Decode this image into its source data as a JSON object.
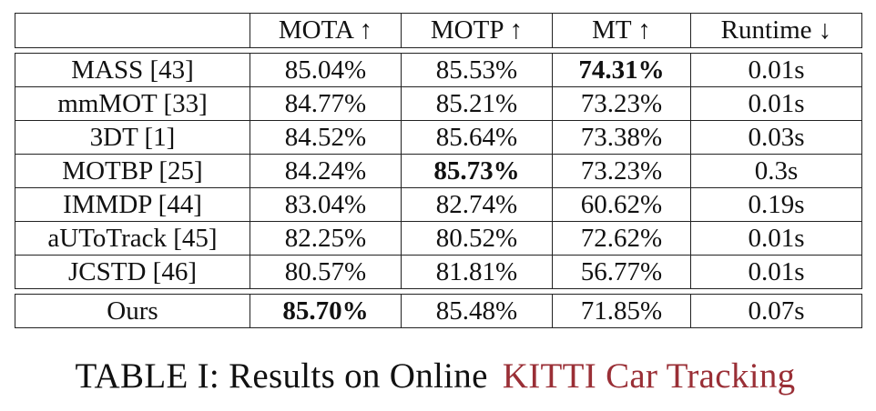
{
  "table": {
    "columns": [
      "",
      "MOTA ↑",
      "MOTP ↑",
      "MT ↑",
      "Runtime ↓"
    ],
    "rows": [
      {
        "method": "MASS [43]",
        "mota": "85.04%",
        "motp": "85.53%",
        "mt": "74.31%",
        "runtime": "0.01s",
        "bold": [
          "mt"
        ]
      },
      {
        "method": "mmMOT [33]",
        "mota": "84.77%",
        "motp": "85.21%",
        "mt": "73.23%",
        "runtime": "0.01s",
        "bold": []
      },
      {
        "method": "3DT [1]",
        "mota": "84.52%",
        "motp": "85.64%",
        "mt": "73.38%",
        "runtime": "0.03s",
        "bold": []
      },
      {
        "method": "MOTBP [25]",
        "mota": "84.24%",
        "motp": "85.73%",
        "mt": "73.23%",
        "runtime": "0.3s",
        "bold": [
          "motp"
        ]
      },
      {
        "method": "IMMDP [44]",
        "mota": "83.04%",
        "motp": "82.74%",
        "mt": "60.62%",
        "runtime": "0.19s",
        "bold": []
      },
      {
        "method": "aUToTrack [45]",
        "mota": "82.25%",
        "motp": "80.52%",
        "mt": "72.62%",
        "runtime": "0.01s",
        "bold": []
      },
      {
        "method": "JCSTD [46]",
        "mota": "80.57%",
        "motp": "81.81%",
        "mt": "56.77%",
        "runtime": "0.01s",
        "bold": []
      }
    ],
    "ours": {
      "method": "Ours",
      "mota": "85.70%",
      "motp": "85.48%",
      "mt": "71.85%",
      "runtime": "0.07s",
      "bold": [
        "mota"
      ]
    }
  },
  "caption": {
    "prefix": "TABLE I: Results on Online ",
    "highlighted": "KITTI Car Tracking",
    "highlight_color": "#ec747a"
  }
}
